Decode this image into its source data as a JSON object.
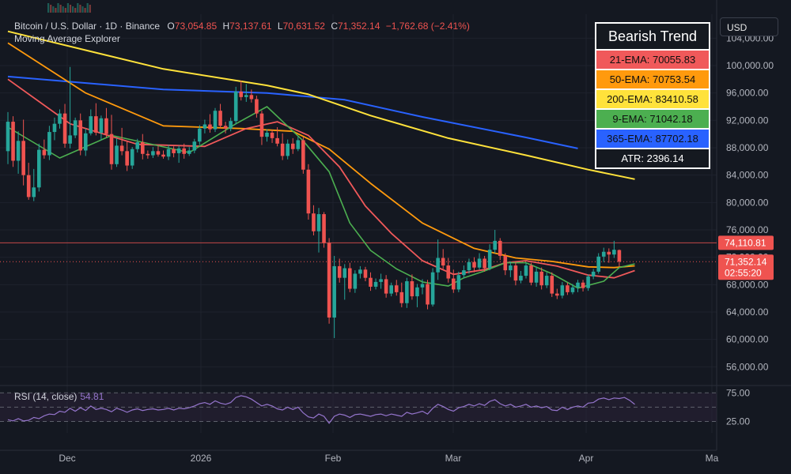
{
  "header": {
    "symbol": "Bitcoin / U.S. Dollar · 1D · Binance",
    "o_label": "O",
    "o_value": "73,054.85",
    "h_label": "H",
    "h_value": "73,137.61",
    "l_label": "L",
    "l_value": "70,631.52",
    "c_label": "C",
    "c_value": "71,352.14",
    "change": "−1,762.68 (−2.41%)",
    "indicator_name": "Moving Average Explorer"
  },
  "currency": "USD",
  "legend": {
    "title": "Bearish Trend",
    "rows": [
      {
        "text": "21-EMA: 70055.83",
        "color": "#f0595a"
      },
      {
        "text": "50-EMA: 70753.54",
        "color": "#ff9a0d"
      },
      {
        "text": "200-EMA: 83410.58",
        "color": "#ffe23b"
      },
      {
        "text": "9-EMA: 71042.18",
        "color": "#4caf50"
      },
      {
        "text": "365-EMA: 87702.18",
        "color": "#2962ff"
      }
    ],
    "atr": "ATR: 2396.14"
  },
  "rsi": {
    "title": "RSI (14, close)",
    "value": "54.81",
    "upper_label": "75.00",
    "lower_label": "25.00"
  },
  "colors": {
    "up": "#26a69a",
    "down": "#ef5350",
    "ema21": "#f0595a",
    "ema50": "#ff9a0d",
    "ema200": "#ffe23b",
    "ema9": "#4caf50",
    "ema365": "#2962ff",
    "rsi": "#9575cd",
    "background": "#141821",
    "grid": "#1e222d"
  },
  "chart_data": [
    {
      "type": "candlestick",
      "title": "Bitcoin / U.S. Dollar · 1D · Binance",
      "y_ticks": [
        "104,000.00",
        "100,000.00",
        "96,000.00",
        "92,000.00",
        "88,000.00",
        "84,000.00",
        "80,000.00",
        "76,000.00",
        "72,000.00",
        "68,000.00",
        "64,000.00",
        "60,000.00",
        "56,000.00"
      ],
      "ylim": [
        53500,
        107500
      ],
      "x_ticks": [
        "Dec",
        "2026",
        "Feb",
        "Mar",
        "Apr",
        "Ma"
      ],
      "price_labels": [
        {
          "text": "74,110.81",
          "value": 74110.81
        },
        {
          "text": "71,352.14",
          "value": 71352.14,
          "sub": "02:55:20"
        }
      ],
      "candles_ohlc": [
        [
          87500,
          93200,
          85600,
          91800
        ],
        [
          91800,
          92600,
          85200,
          86100
        ],
        [
          86100,
          90400,
          84200,
          89000
        ],
        [
          89000,
          92100,
          82500,
          84000
        ],
        [
          84000,
          85800,
          80400,
          80800
        ],
        [
          80800,
          84900,
          80200,
          82200
        ],
        [
          82200,
          88600,
          81600,
          87700
        ],
        [
          87700,
          89200,
          86400,
          86900
        ],
        [
          86900,
          91200,
          86200,
          90300
        ],
        [
          90300,
          92400,
          89100,
          91500
        ],
        [
          91500,
          93600,
          90800,
          93000
        ],
        [
          93000,
          94400,
          88000,
          88600
        ],
        [
          88600,
          99800,
          87900,
          89800
        ],
        [
          89800,
          92400,
          89400,
          92000
        ],
        [
          92000,
          93000,
          86900,
          87600
        ],
        [
          87600,
          90800,
          86800,
          90100
        ],
        [
          90100,
          93600,
          89800,
          92600
        ],
        [
          92600,
          94500,
          89800,
          90200
        ],
        [
          90200,
          92700,
          89100,
          92300
        ],
        [
          92300,
          93800,
          89500,
          90000
        ],
        [
          90000,
          92800,
          84800,
          85600
        ],
        [
          85600,
          89400,
          85200,
          88300
        ],
        [
          88300,
          90900,
          86900,
          87500
        ],
        [
          87500,
          88900,
          84600,
          85400
        ],
        [
          85400,
          88100,
          84900,
          87800
        ],
        [
          87800,
          89300,
          87300,
          88800
        ],
        [
          88800,
          90000,
          86300,
          87100
        ],
        [
          87100,
          87600,
          86400,
          86900
        ],
        [
          86900,
          88100,
          86500,
          87500
        ],
        [
          87500,
          88300,
          86700,
          87000
        ],
        [
          87000,
          87600,
          86400,
          86700
        ],
        [
          86700,
          88400,
          86200,
          87800
        ],
        [
          87800,
          88200,
          86600,
          87200
        ],
        [
          87200,
          88300,
          85800,
          87900
        ],
        [
          87900,
          88600,
          86400,
          87100
        ],
        [
          87100,
          88100,
          86800,
          87600
        ],
        [
          87600,
          89300,
          87200,
          88900
        ],
        [
          88900,
          91300,
          88400,
          90800
        ],
        [
          90800,
          92100,
          90100,
          91400
        ],
        [
          91400,
          92900,
          90200,
          90700
        ],
        [
          90700,
          93800,
          90300,
          93400
        ],
        [
          93400,
          94400,
          90900,
          91200
        ],
        [
          91200,
          91800,
          90100,
          90800
        ],
        [
          90800,
          92400,
          90400,
          91900
        ],
        [
          91900,
          96900,
          91400,
          96200
        ],
        [
          96200,
          97800,
          94900,
          95400
        ],
        [
          95400,
          97300,
          94700,
          95700
        ],
        [
          95700,
          96500,
          94600,
          95100
        ],
        [
          95100,
          95600,
          92400,
          93000
        ],
        [
          93000,
          93400,
          88400,
          89600
        ],
        [
          89600,
          90700,
          88900,
          90200
        ],
        [
          90200,
          90600,
          88700,
          89400
        ],
        [
          89400,
          91000,
          88200,
          88600
        ],
        [
          88600,
          90100,
          86200,
          86800
        ],
        [
          86800,
          89200,
          86300,
          88600
        ],
        [
          88600,
          89400,
          87100,
          87800
        ],
        [
          87800,
          89600,
          87500,
          89100
        ],
        [
          89100,
          89600,
          84200,
          84800
        ],
        [
          84800,
          85600,
          77500,
          78400
        ],
        [
          78400,
          79600,
          75200,
          75800
        ],
        [
          75800,
          79200,
          72700,
          78300
        ],
        [
          78300,
          78600,
          73400,
          74100
        ],
        [
          74100,
          74800,
          62300,
          63200
        ],
        [
          63200,
          72200,
          60200,
          70700
        ],
        [
          70700,
          71800,
          68300,
          69000
        ],
        [
          69000,
          71000,
          65800,
          70400
        ],
        [
          70400,
          71200,
          66900,
          67400
        ],
        [
          67400,
          70100,
          66800,
          69600
        ],
        [
          69600,
          70700,
          68900,
          70200
        ],
        [
          70200,
          70600,
          68500,
          69000
        ],
        [
          69000,
          69800,
          67100,
          67700
        ],
        [
          67700,
          68900,
          67300,
          68400
        ],
        [
          68400,
          69600,
          67400,
          68800
        ],
        [
          68800,
          69400,
          66100,
          66700
        ],
        [
          66700,
          68300,
          66300,
          67900
        ],
        [
          67900,
          68700,
          66400,
          66900
        ],
        [
          66900,
          68300,
          64700,
          65300
        ],
        [
          65300,
          69000,
          64600,
          68500
        ],
        [
          68500,
          69500,
          65800,
          66300
        ],
        [
          66300,
          68100,
          64700,
          67600
        ],
        [
          67600,
          68800,
          66600,
          68100
        ],
        [
          68100,
          68700,
          64400,
          65100
        ],
        [
          65100,
          70400,
          64800,
          69800
        ],
        [
          69800,
          74600,
          68700,
          71900
        ],
        [
          71900,
          73200,
          70300,
          70800
        ],
        [
          70800,
          71900,
          68300,
          68900
        ],
        [
          68900,
          70200,
          66800,
          67300
        ],
        [
          67300,
          69900,
          66900,
          69400
        ],
        [
          69400,
          70800,
          68900,
          70100
        ],
        [
          70100,
          71800,
          69600,
          71300
        ],
        [
          71300,
          72000,
          69800,
          70500
        ],
        [
          70500,
          72600,
          70200,
          71800
        ],
        [
          71800,
          72200,
          69900,
          70400
        ],
        [
          70400,
          73900,
          70100,
          73100
        ],
        [
          73100,
          76000,
          72600,
          74400
        ],
        [
          74400,
          74800,
          71600,
          72200
        ],
        [
          72200,
          72600,
          69400,
          70100
        ],
        [
          70100,
          71400,
          69100,
          70800
        ],
        [
          70800,
          71300,
          67900,
          68600
        ],
        [
          68600,
          70000,
          68200,
          69300
        ],
        [
          69300,
          71200,
          68900,
          70800
        ],
        [
          70800,
          71200,
          67900,
          68300
        ],
        [
          68300,
          70600,
          67700,
          69900
        ],
        [
          69900,
          70500,
          67300,
          67900
        ],
        [
          67900,
          69800,
          67500,
          69300
        ],
        [
          69300,
          69800,
          66200,
          66700
        ],
        [
          66700,
          67400,
          65900,
          66400
        ],
        [
          66400,
          68400,
          66000,
          67900
        ],
        [
          67900,
          68300,
          66500,
          66900
        ],
        [
          66900,
          68100,
          66600,
          67600
        ],
        [
          67600,
          68700,
          66900,
          68300
        ],
        [
          68300,
          68700,
          67000,
          67500
        ],
        [
          67500,
          69500,
          67100,
          69200
        ],
        [
          69200,
          70300,
          68800,
          69900
        ],
        [
          69900,
          72600,
          69600,
          72100
        ],
        [
          72100,
          73400,
          71300,
          72800
        ],
        [
          72800,
          73300,
          71200,
          72400
        ],
        [
          72400,
          74400,
          71900,
          73100
        ],
        [
          73054.85,
          73137.61,
          70631.52,
          71352.14
        ]
      ],
      "ema9": [
        [
          0,
          91000
        ],
        [
          10,
          86500
        ],
        [
          20,
          89800
        ],
        [
          35,
          87300
        ],
        [
          44,
          91500
        ],
        [
          50,
          94000
        ],
        [
          57,
          89000
        ],
        [
          62,
          84500
        ],
        [
          66,
          77000
        ],
        [
          70,
          73000
        ],
        [
          75,
          70300
        ],
        [
          80,
          68400
        ],
        [
          85,
          67800
        ],
        [
          88,
          69000
        ],
        [
          92,
          70000
        ],
        [
          96,
          71200
        ],
        [
          100,
          71200
        ],
        [
          105,
          69600
        ],
        [
          110,
          67500
        ],
        [
          115,
          68500
        ],
        [
          118,
          70500
        ],
        [
          121,
          71040
        ]
      ],
      "ema21": [
        [
          0,
          98000
        ],
        [
          12,
          91500
        ],
        [
          25,
          88500
        ],
        [
          38,
          88200
        ],
        [
          46,
          90800
        ],
        [
          52,
          91800
        ],
        [
          58,
          89800
        ],
        [
          64,
          85200
        ],
        [
          69,
          79500
        ],
        [
          74,
          75500
        ],
        [
          80,
          71500
        ],
        [
          86,
          69500
        ],
        [
          92,
          70200
        ],
        [
          96,
          71200
        ],
        [
          100,
          71500
        ],
        [
          106,
          70700
        ],
        [
          112,
          69400
        ],
        [
          117,
          69000
        ],
        [
          121,
          70060
        ]
      ],
      "ema50": [
        [
          0,
          103300
        ],
        [
          15,
          96000
        ],
        [
          30,
          91200
        ],
        [
          45,
          90800
        ],
        [
          55,
          90400
        ],
        [
          62,
          87800
        ],
        [
          70,
          82800
        ],
        [
          80,
          77000
        ],
        [
          90,
          73300
        ],
        [
          98,
          71900
        ],
        [
          105,
          71400
        ],
        [
          112,
          70600
        ],
        [
          117,
          70500
        ],
        [
          121,
          70750
        ]
      ],
      "ema200": [
        [
          0,
          105000
        ],
        [
          30,
          99500
        ],
        [
          50,
          97100
        ],
        [
          58,
          95800
        ],
        [
          70,
          92700
        ],
        [
          85,
          89400
        ],
        [
          100,
          86900
        ],
        [
          112,
          84800
        ],
        [
          121,
          83410
        ]
      ],
      "ema365": [
        [
          0,
          98400
        ],
        [
          30,
          96500
        ],
        [
          50,
          96000
        ],
        [
          65,
          95000
        ],
        [
          80,
          92500
        ],
        [
          100,
          89500
        ],
        [
          110,
          87900
        ]
      ],
      "ema365_legend_value": 87702.18,
      "atr": 2396.14
    },
    {
      "type": "line",
      "title": "RSI (14, close)",
      "y_ticks": [
        "75.00",
        "25.00"
      ],
      "ylim": [
        5,
        85
      ],
      "levels": [
        75,
        50,
        25
      ],
      "values": [
        28,
        26,
        30,
        26,
        27,
        32,
        30,
        35,
        38,
        37,
        43,
        41,
        48,
        43,
        49,
        44,
        52,
        46,
        48,
        46,
        42,
        48,
        45,
        41,
        45,
        47,
        44,
        46,
        47,
        45,
        46,
        48,
        45,
        48,
        47,
        49,
        52,
        56,
        58,
        55,
        61,
        57,
        55,
        58,
        67,
        70,
        68,
        64,
        58,
        52,
        55,
        52,
        47,
        45,
        50,
        46,
        50,
        40,
        33,
        31,
        38,
        34,
        22,
        34,
        38,
        36,
        32,
        37,
        38,
        36,
        34,
        37,
        38,
        35,
        38,
        36,
        34,
        41,
        38,
        40,
        43,
        38,
        48,
        55,
        51,
        46,
        43,
        49,
        51,
        55,
        52,
        56,
        53,
        60,
        63,
        56,
        52,
        55,
        50,
        52,
        55,
        50,
        52,
        49,
        51,
        45,
        44,
        50,
        46,
        50,
        52,
        50,
        57,
        58,
        64,
        66,
        63,
        66,
        65,
        67,
        62,
        54.81
      ]
    }
  ]
}
